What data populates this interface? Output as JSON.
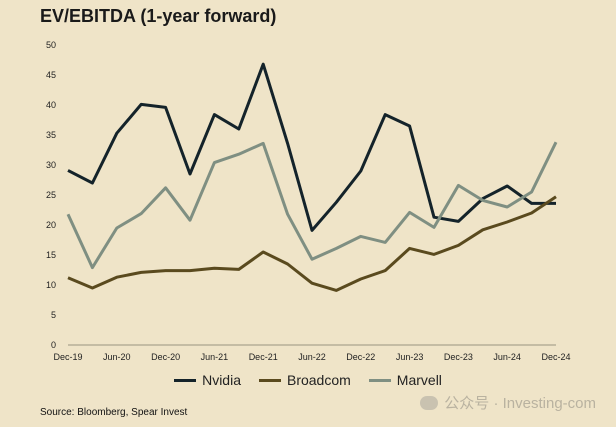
{
  "title": "EV/EBITDA (1-year forward)",
  "source": "Source: Bloomberg, Spear Invest",
  "watermark": "公众号 · Investing-com",
  "watermark_icon": "wechat-icon",
  "chart_data": {
    "type": "line",
    "title": "EV/EBITDA (1-year forward)",
    "xlabel": "",
    "ylabel": "",
    "ylim": [
      0,
      50
    ],
    "yticks": [
      0,
      5,
      10,
      15,
      20,
      25,
      30,
      35,
      40,
      45,
      50
    ],
    "grid": false,
    "legend_position": "bottom",
    "x": [
      "Dec-19",
      "Mar-20",
      "Jun-20",
      "Sep-20",
      "Dec-20",
      "Mar-21",
      "Jun-21",
      "Sep-21",
      "Dec-21",
      "Mar-22",
      "Jun-22",
      "Sep-22",
      "Dec-22",
      "Mar-23",
      "Jun-23",
      "Sep-23",
      "Dec-23",
      "Mar-24",
      "Jun-24",
      "Sep-24",
      "Dec-24"
    ],
    "xtick_labels": [
      "Dec-19",
      "Jun-20",
      "Dec-20",
      "Jun-21",
      "Dec-21",
      "Jun-22",
      "Dec-22",
      "Jun-23",
      "Dec-23",
      "Jun-24",
      "Dec-24"
    ],
    "series": [
      {
        "name": "Nvidia",
        "color": "#14232a",
        "values": [
          29.1,
          27.0,
          35.3,
          40.1,
          39.6,
          28.5,
          38.4,
          36.0,
          46.8,
          33.6,
          19.1,
          23.8,
          29.0,
          38.4,
          36.5,
          21.3,
          20.6,
          24.4,
          26.5,
          23.6,
          23.6
        ]
      },
      {
        "name": "Broadcom",
        "color": "#5a4a1e",
        "values": [
          11.2,
          9.5,
          11.3,
          12.1,
          12.4,
          12.4,
          12.8,
          12.6,
          15.5,
          13.5,
          10.3,
          9.1,
          11.0,
          12.4,
          16.1,
          15.1,
          16.6,
          19.2,
          20.5,
          22.0,
          24.7
        ]
      },
      {
        "name": "Marvell",
        "color": "#7f8f82",
        "values": [
          21.8,
          12.9,
          19.5,
          21.9,
          26.2,
          20.8,
          30.4,
          31.8,
          33.6,
          21.8,
          14.3,
          16.1,
          18.1,
          17.1,
          22.1,
          19.6,
          26.6,
          24.1,
          23.0,
          25.5,
          33.8
        ]
      }
    ]
  }
}
